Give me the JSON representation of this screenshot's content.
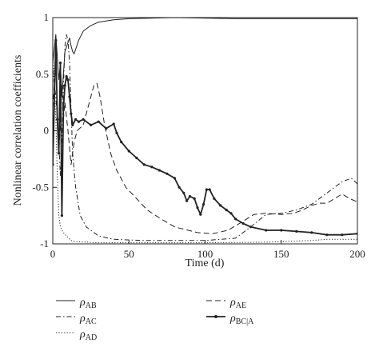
{
  "chart_data": {
    "type": "line",
    "title": "",
    "xlabel": "Time (d)",
    "ylabel": "Nonlinear correlation coefficients",
    "xlim": [
      0,
      200
    ],
    "ylim": [
      -1,
      1
    ],
    "x_ticks": [
      0,
      50,
      100,
      150,
      200
    ],
    "y_ticks": [
      -1,
      -0.5,
      0,
      0.5,
      1
    ],
    "x_tick_labels": [
      "0",
      "50",
      "100",
      "150",
      "200"
    ],
    "y_tick_labels": [
      "-1",
      "-0.5",
      "0",
      "0.5",
      "1"
    ],
    "grid": false,
    "legend_position": "below",
    "series": [
      {
        "name": "ρAB",
        "symbol": "ρ",
        "subscript": "AB",
        "style": "solid",
        "points": [
          [
            0,
            0.6
          ],
          [
            2,
            0.85
          ],
          [
            4,
            0.45
          ],
          [
            5,
            0.6
          ],
          [
            6,
            0.3
          ],
          [
            8,
            0.7
          ],
          [
            10,
            0.78
          ],
          [
            11,
            0.82
          ],
          [
            12,
            0.75
          ],
          [
            13,
            0.7
          ],
          [
            14,
            0.68
          ],
          [
            15,
            0.72
          ],
          [
            17,
            0.8
          ],
          [
            20,
            0.88
          ],
          [
            25,
            0.93
          ],
          [
            30,
            0.96
          ],
          [
            40,
            0.98
          ],
          [
            50,
            0.99
          ],
          [
            80,
            1.0
          ],
          [
            120,
            0.99
          ],
          [
            150,
            0.99
          ],
          [
            200,
            0.99
          ]
        ]
      },
      {
        "name": "ρAC",
        "symbol": "ρ",
        "subscript": "AC",
        "style": "dashdot",
        "points": [
          [
            0,
            0.55
          ],
          [
            2,
            0.3
          ],
          [
            4,
            -0.1
          ],
          [
            5,
            -0.4
          ],
          [
            6,
            -0.1
          ],
          [
            7,
            0.4
          ],
          [
            8,
            0.75
          ],
          [
            9,
            0.85
          ],
          [
            10,
            0.8
          ],
          [
            11,
            0.6
          ],
          [
            12,
            0.2
          ],
          [
            13,
            -0.2
          ],
          [
            15,
            -0.5
          ],
          [
            18,
            -0.75
          ],
          [
            22,
            -0.85
          ],
          [
            30,
            -0.93
          ],
          [
            40,
            -0.96
          ],
          [
            60,
            -0.97
          ],
          [
            100,
            -0.97
          ],
          [
            120,
            -0.95
          ],
          [
            130,
            -0.85
          ],
          [
            140,
            -0.74
          ],
          [
            150,
            -0.73
          ],
          [
            160,
            -0.7
          ],
          [
            170,
            -0.65
          ],
          [
            178,
            -0.57
          ],
          [
            185,
            -0.5
          ],
          [
            190,
            -0.45
          ],
          [
            196,
            -0.42
          ],
          [
            200,
            -0.47
          ]
        ]
      },
      {
        "name": "ρAD",
        "symbol": "ρ",
        "subscript": "AD",
        "style": "dotted",
        "points": [
          [
            0,
            0.7
          ],
          [
            2,
            0.1
          ],
          [
            3,
            -0.4
          ],
          [
            4,
            -0.75
          ],
          [
            5,
            -0.85
          ],
          [
            7,
            -0.9
          ],
          [
            9,
            -0.93
          ],
          [
            12,
            -0.97
          ],
          [
            15,
            -0.98
          ],
          [
            30,
            -0.99
          ],
          [
            60,
            -0.99
          ],
          [
            100,
            -0.99
          ],
          [
            140,
            -0.985
          ],
          [
            170,
            -0.97
          ],
          [
            180,
            -0.96
          ],
          [
            200,
            -0.96
          ]
        ]
      },
      {
        "name": "ρAE",
        "symbol": "ρ",
        "subscript": "AE",
        "style": "dashed",
        "points": [
          [
            0,
            0.2
          ],
          [
            2,
            0.6
          ],
          [
            3,
            0.2
          ],
          [
            4,
            -0.2
          ],
          [
            5,
            0.1
          ],
          [
            6,
            0.4
          ],
          [
            7,
            0.1
          ],
          [
            8,
            0.25
          ],
          [
            10,
            0.0
          ],
          [
            12,
            -0.3
          ],
          [
            14,
            -0.1
          ],
          [
            16,
            0.0
          ],
          [
            20,
            0.05
          ],
          [
            24,
            0.25
          ],
          [
            27,
            0.4
          ],
          [
            29,
            0.42
          ],
          [
            31,
            0.3
          ],
          [
            34,
            0.05
          ],
          [
            38,
            -0.2
          ],
          [
            42,
            -0.35
          ],
          [
            48,
            -0.5
          ],
          [
            55,
            -0.6
          ],
          [
            62,
            -0.7
          ],
          [
            70,
            -0.77
          ],
          [
            80,
            -0.85
          ],
          [
            95,
            -0.9
          ],
          [
            105,
            -0.91
          ],
          [
            115,
            -0.88
          ],
          [
            125,
            -0.8
          ],
          [
            132,
            -0.74
          ],
          [
            140,
            -0.73
          ],
          [
            150,
            -0.74
          ],
          [
            158,
            -0.73
          ],
          [
            164,
            -0.7
          ],
          [
            170,
            -0.66
          ],
          [
            175,
            -0.64
          ],
          [
            180,
            -0.64
          ],
          [
            185,
            -0.6
          ],
          [
            190,
            -0.56
          ],
          [
            195,
            -0.6
          ],
          [
            200,
            -0.63
          ]
        ]
      },
      {
        "name": "ρBC|A",
        "symbol": "ρ",
        "subscript": "BC|A",
        "style": "solid-dots",
        "points": [
          [
            0,
            -0.3
          ],
          [
            2,
            0.8
          ],
          [
            3,
            0.1
          ],
          [
            4,
            -0.2
          ],
          [
            5,
            0.6
          ],
          [
            6,
            -0.75
          ],
          [
            7,
            0.2
          ],
          [
            8,
            0.4
          ],
          [
            9,
            0.48
          ],
          [
            10,
            0.45
          ],
          [
            11,
            0.3
          ],
          [
            12,
            0.15
          ],
          [
            13,
            0.05
          ],
          [
            15,
            0.1
          ],
          [
            17,
            0.08
          ],
          [
            20,
            0.1
          ],
          [
            25,
            0.05
          ],
          [
            30,
            0.08
          ],
          [
            35,
            0.02
          ],
          [
            40,
            0.06
          ],
          [
            42,
            -0.02
          ],
          [
            45,
            -0.1
          ],
          [
            50,
            -0.18
          ],
          [
            55,
            -0.24
          ],
          [
            60,
            -0.3
          ],
          [
            65,
            -0.32
          ],
          [
            70,
            -0.35
          ],
          [
            75,
            -0.38
          ],
          [
            80,
            -0.42
          ],
          [
            83,
            -0.5
          ],
          [
            86,
            -0.55
          ],
          [
            88,
            -0.62
          ],
          [
            90,
            -0.58
          ],
          [
            93,
            -0.6
          ],
          [
            95,
            -0.68
          ],
          [
            97,
            -0.74
          ],
          [
            99,
            -0.65
          ],
          [
            101,
            -0.52
          ],
          [
            103,
            -0.52
          ],
          [
            106,
            -0.6
          ],
          [
            110,
            -0.66
          ],
          [
            114,
            -0.7
          ],
          [
            117,
            -0.73
          ],
          [
            120,
            -0.78
          ],
          [
            125,
            -0.82
          ],
          [
            130,
            -0.85
          ],
          [
            140,
            -0.88
          ],
          [
            150,
            -0.88
          ],
          [
            160,
            -0.89
          ],
          [
            170,
            -0.9
          ],
          [
            180,
            -0.92
          ],
          [
            190,
            -0.92
          ],
          [
            200,
            -0.91
          ]
        ]
      }
    ]
  }
}
